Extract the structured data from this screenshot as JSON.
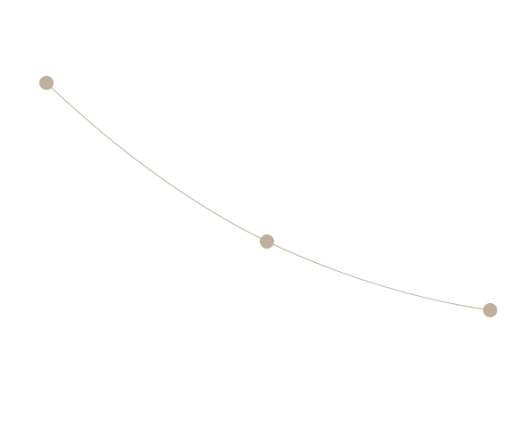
{
  "colors": {
    "background": "#ffffff",
    "curve_stroke": "#bfb09c",
    "node_fill": "#bfb09c"
  },
  "curve": {
    "node_count": 3
  }
}
